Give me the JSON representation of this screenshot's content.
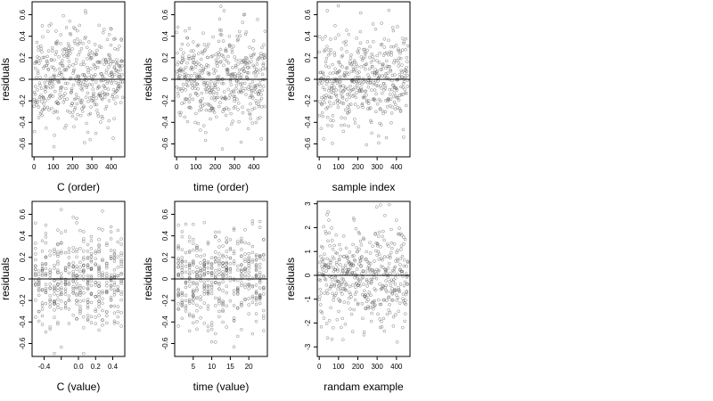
{
  "chart_data": [
    {
      "type": "scatter",
      "xlabel": "C (order)",
      "ylabel": "residuals",
      "xlim": [
        -10,
        470
      ],
      "ylim": [
        -0.72,
        0.72
      ],
      "x_ticks": [
        0,
        100,
        200,
        300,
        400
      ],
      "y_ticks": [
        -0.6,
        -0.4,
        -0.2,
        0.0,
        0.2,
        0.4,
        0.6
      ],
      "reference_line": 0,
      "n_points": 460,
      "x_generator": "index",
      "spread": 0.22,
      "seed": 11
    },
    {
      "type": "scatter",
      "xlabel": "time (order)",
      "ylabel": "residuals",
      "xlim": [
        -10,
        470
      ],
      "ylim": [
        -0.72,
        0.72
      ],
      "x_ticks": [
        0,
        100,
        200,
        300,
        400
      ],
      "y_ticks": [
        -0.6,
        -0.4,
        -0.2,
        0.0,
        0.2,
        0.4,
        0.6
      ],
      "reference_line": 0,
      "n_points": 460,
      "x_generator": "index",
      "spread": 0.22,
      "seed": 23
    },
    {
      "type": "scatter",
      "xlabel": "sample index",
      "ylabel": "residuals",
      "xlim": [
        -10,
        470
      ],
      "ylim": [
        -0.72,
        0.72
      ],
      "x_ticks": [
        0,
        100,
        200,
        300,
        400
      ],
      "y_ticks": [
        -0.6,
        -0.4,
        -0.2,
        0.0,
        0.2,
        0.4,
        0.6
      ],
      "reference_line": 0,
      "n_points": 460,
      "x_generator": "index",
      "spread": 0.22,
      "seed": 37
    },
    {
      "type": "scatter",
      "xlabel": "C (value)",
      "ylabel": "residuals",
      "xlim": [
        -0.54,
        0.54
      ],
      "ylim": [
        -0.72,
        0.72
      ],
      "x_ticks": [
        -0.4,
        -0.2,
        0.0,
        0.2,
        0.4
      ],
      "x_tick_labels": [
        "-0.4",
        "",
        "0.0",
        "0.2",
        "0.4"
      ],
      "y_ticks": [
        -0.6,
        -0.4,
        -0.2,
        0.0,
        0.2,
        0.4,
        0.6
      ],
      "reference_line": 0,
      "n_points": 460,
      "x_generator": "levels",
      "x_levels": [
        -0.5,
        -0.46,
        -0.42,
        -0.38,
        -0.33,
        -0.28,
        -0.24,
        -0.2,
        -0.15,
        -0.11,
        -0.06,
        -0.02,
        0.02,
        0.06,
        0.11,
        0.15,
        0.2,
        0.24,
        0.28,
        0.33,
        0.38,
        0.42,
        0.46,
        0.5
      ],
      "spread": 0.22,
      "seed": 41
    },
    {
      "type": "scatter",
      "xlabel": "time (value)",
      "ylabel": "residuals",
      "xlim": [
        0,
        25
      ],
      "ylim": [
        -0.72,
        0.72
      ],
      "x_ticks": [
        5,
        10,
        15,
        20
      ],
      "y_ticks": [
        -0.6,
        -0.4,
        -0.2,
        0.0,
        0.2,
        0.4,
        0.6
      ],
      "reference_line": 0,
      "n_points": 460,
      "x_generator": "levels",
      "x_levels": [
        1,
        2,
        3,
        4,
        5,
        6,
        7,
        8,
        9,
        10,
        11,
        12,
        13,
        14,
        15,
        16,
        17,
        18,
        19,
        20,
        21,
        22,
        23,
        24
      ],
      "spread": 0.22,
      "seed": 53
    },
    {
      "type": "scatter",
      "xlabel": "randam example",
      "ylabel": "residuals",
      "xlim": [
        -10,
        470
      ],
      "ylim": [
        -3.4,
        3.1
      ],
      "x_ticks": [
        0,
        100,
        200,
        300,
        400
      ],
      "y_ticks": [
        -3,
        -2,
        -1,
        0,
        1,
        2,
        3
      ],
      "reference_line": 0,
      "n_points": 460,
      "x_generator": "index",
      "spread": 1.0,
      "seed": 67
    }
  ]
}
